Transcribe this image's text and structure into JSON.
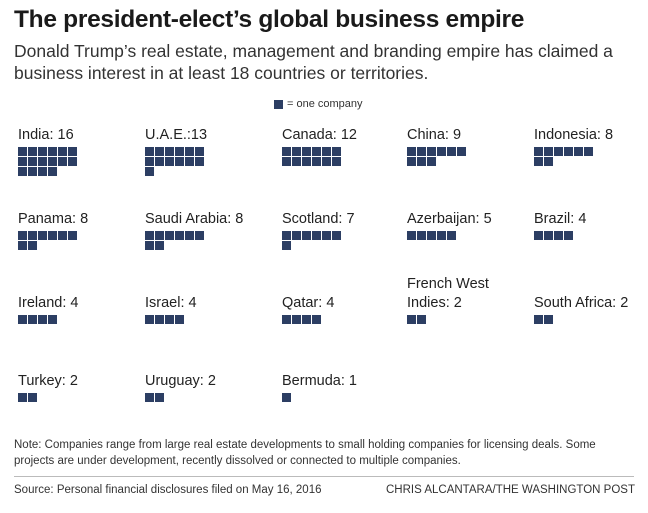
{
  "title": "The president-elect’s global business empire",
  "subtitle": "Donald Trump’s real estate, management and branding empire has claimed a business interest in at least 18 countries or territories.",
  "legend": {
    "label": "= one company"
  },
  "colors": {
    "block": "#2c3e63"
  },
  "chart_data": {
    "type": "unit-chart",
    "title": "The president-elect’s global business empire",
    "unit": "one company",
    "items": [
      {
        "label": "India: 16",
        "country": "India",
        "value": 16
      },
      {
        "label": "U.A.E.:13",
        "country": "U.A.E.",
        "value": 13
      },
      {
        "label": "Canada: 12",
        "country": "Canada",
        "value": 12
      },
      {
        "label": "China: 9",
        "country": "China",
        "value": 9
      },
      {
        "label": "Indonesia: 8",
        "country": "Indonesia",
        "value": 8
      },
      {
        "label": "Panama: 8",
        "country": "Panama",
        "value": 8
      },
      {
        "label": "Saudi Arabia: 8",
        "country": "Saudi Arabia",
        "value": 8
      },
      {
        "label": "Scotland: 7",
        "country": "Scotland",
        "value": 7
      },
      {
        "label": "Azerbaijan: 5",
        "country": "Azerbaijan",
        "value": 5
      },
      {
        "label": "Brazil: 4",
        "country": "Brazil",
        "value": 4
      },
      {
        "label": "Ireland: 4",
        "country": "Ireland",
        "value": 4
      },
      {
        "label": "Israel: 4",
        "country": "Israel",
        "value": 4
      },
      {
        "label": "Qatar: 4",
        "country": "Qatar",
        "value": 4
      },
      {
        "label": "French West Indies: 2",
        "country": "French West Indies",
        "value": 2
      },
      {
        "label": "South Africa: 2",
        "country": "South Africa",
        "value": 2
      },
      {
        "label": "Turkey: 2",
        "country": "Turkey",
        "value": 2
      },
      {
        "label": "Uruguay: 2",
        "country": "Uruguay",
        "value": 2
      },
      {
        "label": "Bermuda: 1",
        "country": "Bermuda",
        "value": 1
      }
    ]
  },
  "note": "Note: Companies range from large real estate developments to small holding companies for licensing deals. Some projects are under development, recently dissolved or connected to multiple companies.",
  "source": "Source: Personal financial disclosures filed on May 16, 2016",
  "credit": "CHRIS ALCANTARA/THE WASHINGTON POST"
}
